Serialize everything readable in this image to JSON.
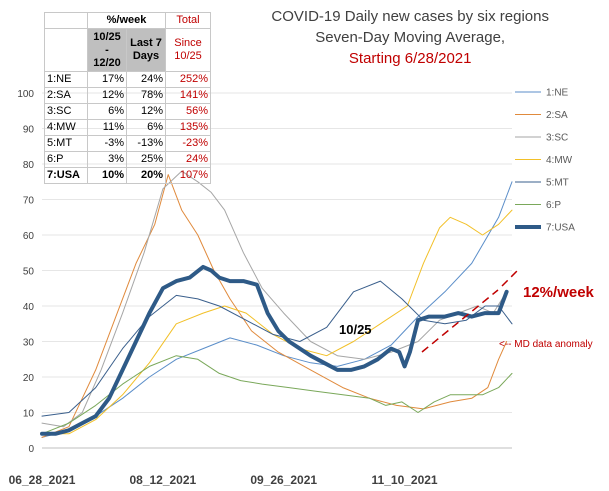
{
  "title": {
    "line1": "COVID-19 Daily new cases by six regions",
    "line2": "Seven-Day Moving Average,",
    "line3": "Starting 6/28/2021"
  },
  "table": {
    "head1": [
      "%/week",
      "Total"
    ],
    "head2": [
      "10/25 - 12/20",
      "Last 7 Days",
      "Since 10/25"
    ],
    "rows": [
      {
        "label": "1:NE",
        "a": "17%",
        "b": "24%",
        "c": "252%"
      },
      {
        "label": "2:SA",
        "a": "12%",
        "b": "78%",
        "c": "141%"
      },
      {
        "label": "3:SC",
        "a": "6%",
        "b": "12%",
        "c": "56%"
      },
      {
        "label": "4:MW",
        "a": "11%",
        "b": "6%",
        "c": "135%"
      },
      {
        "label": "5:MT",
        "a": "-3%",
        "b": "-13%",
        "c": "-23%"
      },
      {
        "label": "6:P",
        "a": "3%",
        "b": "25%",
        "c": "24%"
      },
      {
        "label": "7:USA",
        "a": "10%",
        "b": "20%",
        "c": "107%"
      }
    ]
  },
  "annotations": {
    "date_label": "10/25",
    "weekly_label": "12%/week",
    "anomaly_label": "<-- MD data anomaly"
  },
  "chart_data": {
    "type": "line",
    "title": "COVID-19 Daily new cases by six regions Seven-Day Moving Average, Starting 6/28/2021",
    "ylim": [
      0,
      100
    ],
    "yticks": [
      0,
      10,
      20,
      30,
      40,
      50,
      60,
      70,
      80,
      90,
      100
    ],
    "xlim": [
      0,
      175
    ],
    "xticks": [
      {
        "day": 0,
        "label": "06_28_2021"
      },
      {
        "day": 45,
        "label": "08_12_2021"
      },
      {
        "day": 90,
        "label": "09_26_2021"
      },
      {
        "day": 135,
        "label": "11_10_2021"
      }
    ],
    "legend_position": "right",
    "series": [
      {
        "name": "1:NE",
        "color": "#5b8ec9",
        "width": 1,
        "points": [
          [
            0,
            3
          ],
          [
            10,
            5
          ],
          [
            20,
            9
          ],
          [
            30,
            14
          ],
          [
            40,
            20
          ],
          [
            50,
            25
          ],
          [
            60,
            28
          ],
          [
            70,
            31
          ],
          [
            80,
            29
          ],
          [
            90,
            26
          ],
          [
            100,
            24
          ],
          [
            110,
            23
          ],
          [
            120,
            25
          ],
          [
            130,
            29
          ],
          [
            140,
            37
          ],
          [
            150,
            44
          ],
          [
            160,
            52
          ],
          [
            170,
            65
          ],
          [
            175,
            75
          ]
        ]
      },
      {
        "name": "2:SA",
        "color": "#e08a3c",
        "width": 1,
        "points": [
          [
            0,
            3
          ],
          [
            10,
            6
          ],
          [
            20,
            22
          ],
          [
            28,
            38
          ],
          [
            35,
            52
          ],
          [
            42,
            63
          ],
          [
            47,
            77
          ],
          [
            52,
            67
          ],
          [
            58,
            60
          ],
          [
            64,
            50
          ],
          [
            70,
            42
          ],
          [
            78,
            33
          ],
          [
            88,
            27
          ],
          [
            100,
            22
          ],
          [
            112,
            17
          ],
          [
            122,
            14
          ],
          [
            132,
            12
          ],
          [
            142,
            11
          ],
          [
            152,
            13
          ],
          [
            160,
            14
          ],
          [
            166,
            17
          ],
          [
            170,
            25
          ],
          [
            173,
            30
          ]
        ]
      },
      {
        "name": "3:SC",
        "color": "#a6a6a6",
        "width": 1,
        "points": [
          [
            0,
            7
          ],
          [
            8,
            6
          ],
          [
            15,
            10
          ],
          [
            22,
            22
          ],
          [
            30,
            38
          ],
          [
            38,
            55
          ],
          [
            45,
            73
          ],
          [
            52,
            78
          ],
          [
            58,
            75
          ],
          [
            63,
            72
          ],
          [
            68,
            67
          ],
          [
            75,
            55
          ],
          [
            82,
            45
          ],
          [
            90,
            38
          ],
          [
            100,
            30
          ],
          [
            110,
            26
          ],
          [
            120,
            25
          ],
          [
            130,
            27
          ],
          [
            140,
            30
          ],
          [
            148,
            36
          ],
          [
            155,
            38
          ],
          [
            162,
            40
          ],
          [
            168,
            38
          ],
          [
            173,
            44
          ]
        ]
      },
      {
        "name": "4:MW",
        "color": "#f2c028",
        "width": 1,
        "points": [
          [
            0,
            4
          ],
          [
            10,
            4
          ],
          [
            20,
            8
          ],
          [
            30,
            15
          ],
          [
            40,
            24
          ],
          [
            50,
            35
          ],
          [
            60,
            38
          ],
          [
            68,
            40
          ],
          [
            76,
            38
          ],
          [
            86,
            32
          ],
          [
            96,
            28
          ],
          [
            106,
            26
          ],
          [
            116,
            30
          ],
          [
            126,
            35
          ],
          [
            136,
            40
          ],
          [
            142,
            52
          ],
          [
            148,
            62
          ],
          [
            152,
            65
          ],
          [
            158,
            63
          ],
          [
            164,
            60
          ],
          [
            170,
            63
          ],
          [
            175,
            67
          ]
        ]
      },
      {
        "name": "5:MT",
        "color": "#3a5f8c",
        "width": 1,
        "points": [
          [
            0,
            9
          ],
          [
            10,
            10
          ],
          [
            20,
            17
          ],
          [
            30,
            28
          ],
          [
            40,
            37
          ],
          [
            50,
            43
          ],
          [
            58,
            42
          ],
          [
            66,
            40
          ],
          [
            76,
            36
          ],
          [
            86,
            32
          ],
          [
            96,
            30
          ],
          [
            106,
            34
          ],
          [
            116,
            44
          ],
          [
            126,
            47
          ],
          [
            134,
            42
          ],
          [
            142,
            36
          ],
          [
            150,
            35
          ],
          [
            158,
            36
          ],
          [
            165,
            40
          ],
          [
            170,
            40
          ],
          [
            175,
            35
          ]
        ]
      },
      {
        "name": "6:P",
        "color": "#7aa85a",
        "width": 1,
        "points": [
          [
            0,
            4
          ],
          [
            10,
            7
          ],
          [
            20,
            12
          ],
          [
            30,
            18
          ],
          [
            40,
            23
          ],
          [
            50,
            26
          ],
          [
            58,
            25
          ],
          [
            66,
            21
          ],
          [
            74,
            19
          ],
          [
            82,
            18
          ],
          [
            92,
            17
          ],
          [
            102,
            16
          ],
          [
            112,
            15
          ],
          [
            122,
            14
          ],
          [
            128,
            12
          ],
          [
            134,
            13
          ],
          [
            140,
            10
          ],
          [
            146,
            13
          ],
          [
            152,
            15
          ],
          [
            158,
            15
          ],
          [
            164,
            15
          ],
          [
            170,
            17
          ],
          [
            175,
            21
          ]
        ]
      },
      {
        "name": "7:USA",
        "color": "#2e5a87",
        "width": 4,
        "points": [
          [
            0,
            4
          ],
          [
            5,
            4
          ],
          [
            10,
            5
          ],
          [
            15,
            7
          ],
          [
            20,
            9
          ],
          [
            25,
            14
          ],
          [
            30,
            22
          ],
          [
            35,
            30
          ],
          [
            40,
            38
          ],
          [
            45,
            45
          ],
          [
            50,
            47
          ],
          [
            55,
            48
          ],
          [
            60,
            51
          ],
          [
            63,
            50
          ],
          [
            66,
            48
          ],
          [
            70,
            47
          ],
          [
            75,
            47
          ],
          [
            80,
            46
          ],
          [
            84,
            38
          ],
          [
            88,
            33
          ],
          [
            92,
            30
          ],
          [
            96,
            28
          ],
          [
            100,
            26
          ],
          [
            105,
            24
          ],
          [
            110,
            22
          ],
          [
            115,
            22
          ],
          [
            120,
            23
          ],
          [
            125,
            25
          ],
          [
            130,
            28
          ],
          [
            133,
            27
          ],
          [
            135,
            23
          ],
          [
            137,
            27
          ],
          [
            140,
            36
          ],
          [
            144,
            37
          ],
          [
            150,
            37
          ],
          [
            155,
            38
          ],
          [
            160,
            37
          ],
          [
            165,
            38
          ],
          [
            170,
            38
          ],
          [
            173,
            44
          ]
        ]
      }
    ]
  }
}
